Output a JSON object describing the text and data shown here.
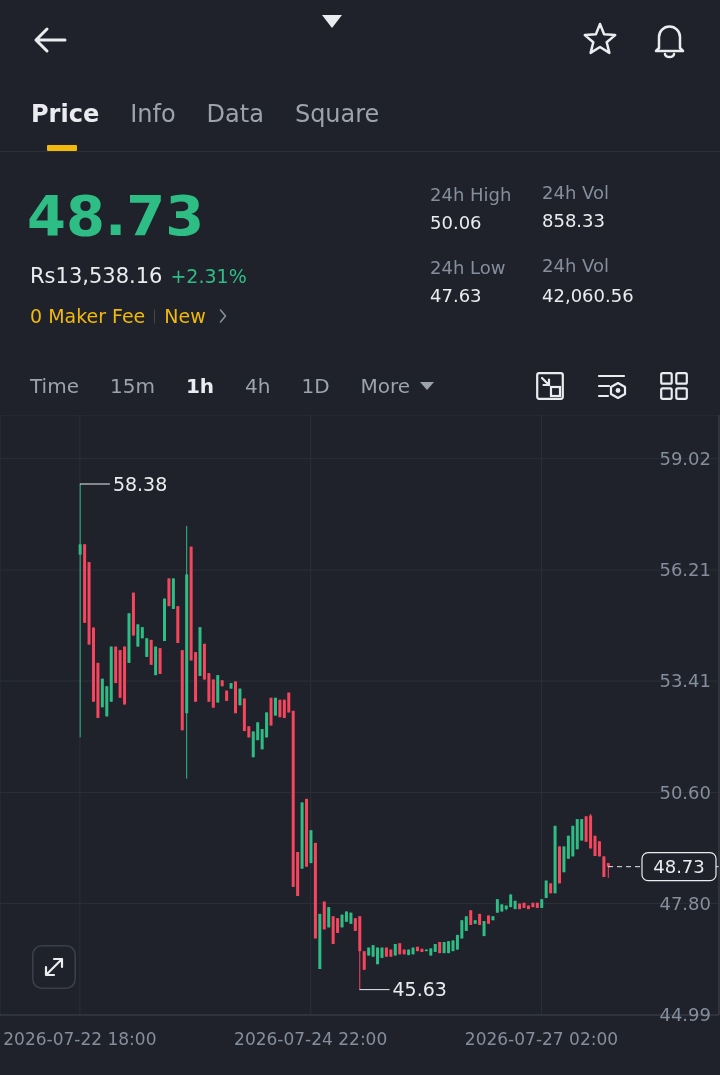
{
  "chart_data": {
    "type": "candlestick",
    "x": [
      "2026-07-22T18:00",
      "2026-07-22T19:00",
      "2026-07-22T20:00",
      "2026-07-22T21:00",
      "2026-07-22T22:00",
      "2026-07-22T23:00",
      "2026-07-23T00:00",
      "2026-07-23T01:00",
      "2026-07-23T02:00",
      "2026-07-23T03:00",
      "2026-07-23T04:00",
      "2026-07-23T05:00",
      "2026-07-23T06:00",
      "2026-07-23T07:00",
      "2026-07-23T08:00",
      "2026-07-23T09:00",
      "2026-07-23T10:00",
      "2026-07-23T11:00",
      "2026-07-23T12:00",
      "2026-07-23T13:00",
      "2026-07-23T14:00",
      "2026-07-23T15:00",
      "2026-07-23T16:00",
      "2026-07-23T17:00",
      "2026-07-23T18:00",
      "2026-07-23T19:00",
      "2026-07-23T20:00",
      "2026-07-23T21:00",
      "2026-07-23T22:00",
      "2026-07-23T23:00",
      "2026-07-24T00:00",
      "2026-07-24T01:00",
      "2026-07-24T02:00",
      "2026-07-24T03:00",
      "2026-07-24T04:00",
      "2026-07-24T05:00",
      "2026-07-24T06:00",
      "2026-07-24T07:00",
      "2026-07-24T08:00",
      "2026-07-24T09:00",
      "2026-07-24T10:00",
      "2026-07-24T11:00",
      "2026-07-24T12:00",
      "2026-07-24T13:00",
      "2026-07-24T14:00",
      "2026-07-24T15:00",
      "2026-07-24T16:00",
      "2026-07-24T17:00",
      "2026-07-24T18:00",
      "2026-07-24T19:00",
      "2026-07-24T20:00",
      "2026-07-24T21:00",
      "2026-07-24T22:00",
      "2026-07-24T23:00",
      "2026-07-25T00:00",
      "2026-07-25T01:00",
      "2026-07-25T02:00",
      "2026-07-25T03:00",
      "2026-07-25T04:00",
      "2026-07-25T05:00",
      "2026-07-25T06:00",
      "2026-07-25T07:00",
      "2026-07-25T08:00",
      "2026-07-25T09:00",
      "2026-07-25T10:00",
      "2026-07-25T11:00",
      "2026-07-25T12:00",
      "2026-07-25T13:00",
      "2026-07-25T14:00",
      "2026-07-25T15:00",
      "2026-07-25T16:00",
      "2026-07-25T17:00",
      "2026-07-25T18:00",
      "2026-07-25T19:00",
      "2026-07-25T20:00",
      "2026-07-25T21:00",
      "2026-07-25T22:00",
      "2026-07-25T23:00",
      "2026-07-26T00:00",
      "2026-07-26T01:00",
      "2026-07-26T02:00",
      "2026-07-26T03:00",
      "2026-07-26T04:00",
      "2026-07-26T05:00",
      "2026-07-26T06:00",
      "2026-07-26T07:00",
      "2026-07-26T08:00",
      "2026-07-26T09:00",
      "2026-07-26T10:00",
      "2026-07-26T11:00",
      "2026-07-26T12:00",
      "2026-07-26T13:00",
      "2026-07-26T14:00",
      "2026-07-26T15:00",
      "2026-07-26T16:00",
      "2026-07-26T17:00",
      "2026-07-26T18:00",
      "2026-07-26T19:00",
      "2026-07-26T20:00",
      "2026-07-26T21:00",
      "2026-07-26T22:00",
      "2026-07-26T23:00",
      "2026-07-27T00:00",
      "2026-07-27T01:00",
      "2026-07-27T02:00",
      "2026-07-27T03:00",
      "2026-07-27T04:00",
      "2026-07-27T05:00",
      "2026-07-27T06:00",
      "2026-07-27T07:00",
      "2026-07-27T08:00",
      "2026-07-27T09:00",
      "2026-07-27T10:00",
      "2026-07-27T11:00",
      "2026-07-27T12:00",
      "2026-07-27T13:00",
      "2026-07-27T14:00",
      "2026-07-27T15:00",
      "2026-07-27T16:00",
      "2026-07-27T17:00"
    ],
    "ohlc": [
      [
        56.6,
        58.38,
        51.99,
        56.86
      ],
      [
        56.86,
        56.86,
        54.88,
        54.88
      ],
      [
        56.41,
        56.41,
        54.33,
        54.33
      ],
      [
        54.76,
        54.76,
        52.89,
        52.89
      ],
      [
        53.87,
        53.87,
        52.48,
        52.48
      ],
      [
        52.75,
        53.47,
        52.75,
        53.47
      ],
      [
        52.52,
        53.28,
        52.52,
        53.28
      ],
      [
        52.89,
        54.28,
        52.89,
        54.28
      ],
      [
        54.28,
        54.28,
        53.36,
        53.36
      ],
      [
        54.19,
        54.19,
        52.99,
        52.99
      ],
      [
        54.28,
        54.28,
        52.82,
        52.82
      ],
      [
        53.87,
        55.12,
        53.87,
        55.12
      ],
      [
        55.64,
        55.64,
        54.56,
        54.56
      ],
      [
        54.28,
        54.84,
        54.28,
        54.84
      ],
      [
        54.49,
        54.77,
        54.49,
        54.77
      ],
      [
        54.02,
        54.49,
        54.02,
        54.49
      ],
      [
        54.45,
        54.45,
        53.82,
        53.82
      ],
      [
        53.56,
        54.28,
        53.56,
        54.28
      ],
      [
        54.24,
        54.24,
        53.59,
        53.59
      ],
      [
        54.42,
        55.49,
        54.42,
        55.49
      ],
      [
        56.0,
        56.0,
        55.3,
        55.3
      ],
      [
        55.23,
        56.0,
        55.23,
        56.0
      ],
      [
        55.3,
        55.3,
        54.37,
        54.37
      ],
      [
        54.19,
        54.19,
        52.17,
        52.17
      ],
      [
        52.6,
        57.32,
        50.95,
        56.1
      ],
      [
        56.8,
        56.8,
        53.93,
        53.93
      ],
      [
        54.14,
        54.14,
        52.89,
        52.89
      ],
      [
        53.54,
        54.77,
        53.54,
        54.77
      ],
      [
        54.35,
        54.35,
        53.45,
        53.45
      ],
      [
        53.61,
        53.61,
        52.89,
        52.89
      ],
      [
        53.45,
        53.45,
        52.74,
        52.74
      ],
      [
        52.87,
        53.56,
        52.87,
        53.56
      ],
      [
        53.43,
        53.43,
        53.28,
        53.28
      ],
      [
        53.17,
        53.17,
        52.91,
        52.91
      ],
      [
        53.22,
        53.36,
        53.22,
        53.36
      ],
      [
        53.4,
        53.4,
        52.6,
        52.6
      ],
      [
        52.8,
        53.22,
        52.8,
        53.22
      ],
      [
        52.97,
        52.97,
        52.15,
        52.15
      ],
      [
        52.27,
        52.27,
        51.99,
        51.99
      ],
      [
        51.49,
        52.14,
        51.49,
        52.14
      ],
      [
        51.92,
        52.37,
        51.92,
        52.37
      ],
      [
        51.69,
        52.2,
        51.69,
        52.2
      ],
      [
        51.99,
        52.62,
        51.99,
        52.62
      ],
      [
        52.99,
        52.99,
        52.29,
        52.29
      ],
      [
        52.54,
        52.99,
        52.54,
        52.99
      ],
      [
        52.94,
        52.94,
        52.5,
        52.5
      ],
      [
        52.94,
        52.94,
        52.48,
        52.48
      ],
      [
        53.12,
        53.12,
        52.62,
        52.62
      ],
      [
        52.66,
        52.66,
        48.22,
        48.22
      ],
      [
        49.1,
        49.1,
        47.99,
        47.99
      ],
      [
        48.68,
        50.35,
        48.68,
        50.35
      ],
      [
        50.44,
        50.44,
        48.73,
        48.73
      ],
      [
        48.82,
        49.65,
        48.82,
        49.65
      ],
      [
        49.33,
        49.33,
        46.92,
        46.92
      ],
      [
        46.15,
        47.54,
        46.15,
        47.54
      ],
      [
        47.85,
        47.85,
        47.15,
        47.15
      ],
      [
        47.2,
        47.71,
        47.2,
        47.71
      ],
      [
        47.48,
        47.48,
        46.78,
        46.78
      ],
      [
        47.43,
        47.43,
        47.06,
        47.06
      ],
      [
        47.2,
        47.52,
        47.2,
        47.52
      ],
      [
        47.34,
        47.6,
        47.34,
        47.6
      ],
      [
        47.29,
        47.57,
        47.29,
        47.57
      ],
      [
        47.43,
        47.43,
        47.11,
        47.11
      ],
      [
        47.48,
        47.48,
        45.63,
        46.6
      ],
      [
        46.6,
        46.6,
        46.13,
        46.13
      ],
      [
        46.49,
        46.69,
        46.49,
        46.69
      ],
      [
        46.46,
        46.75,
        46.46,
        46.75
      ],
      [
        46.27,
        46.69,
        46.27,
        46.69
      ],
      [
        46.43,
        46.69,
        46.43,
        46.69
      ],
      [
        46.69,
        46.69,
        46.46,
        46.46
      ],
      [
        46.64,
        46.64,
        46.46,
        46.46
      ],
      [
        46.49,
        46.78,
        46.49,
        46.78
      ],
      [
        46.8,
        46.8,
        46.52,
        46.52
      ],
      [
        46.64,
        46.64,
        46.52,
        46.52
      ],
      [
        46.5,
        46.64,
        46.5,
        46.64
      ],
      [
        46.52,
        46.69,
        46.52,
        46.69
      ],
      [
        46.71,
        46.71,
        46.6,
        46.6
      ],
      [
        46.66,
        46.66,
        46.58,
        46.58
      ],
      [
        46.6,
        46.64,
        46.6,
        46.64
      ],
      [
        46.49,
        46.67,
        46.49,
        46.67
      ],
      [
        46.58,
        46.78,
        46.58,
        46.78
      ],
      [
        46.83,
        46.83,
        46.55,
        46.55
      ],
      [
        46.55,
        46.83,
        46.55,
        46.83
      ],
      [
        46.55,
        46.85,
        46.55,
        46.85
      ],
      [
        46.6,
        46.87,
        46.6,
        46.87
      ],
      [
        46.64,
        47.01,
        46.64,
        47.01
      ],
      [
        46.92,
        47.38,
        46.92,
        47.38
      ],
      [
        47.11,
        47.48,
        47.11,
        47.48
      ],
      [
        47.63,
        47.63,
        47.26,
        47.26
      ],
      [
        47.29,
        47.38,
        47.29,
        47.38
      ],
      [
        47.54,
        47.54,
        47.26,
        47.26
      ],
      [
        46.98,
        47.36,
        46.98,
        47.36
      ],
      [
        47.5,
        47.5,
        47.29,
        47.29
      ],
      [
        47.38,
        47.48,
        47.38,
        47.48
      ],
      [
        47.57,
        47.91,
        47.57,
        47.91
      ],
      [
        47.6,
        47.78,
        47.6,
        47.78
      ],
      [
        47.66,
        47.75,
        47.63,
        47.75
      ],
      [
        47.71,
        48.03,
        47.71,
        48.03
      ],
      [
        47.66,
        47.87,
        47.66,
        47.87
      ],
      [
        47.8,
        47.8,
        47.66,
        47.66
      ],
      [
        47.82,
        47.82,
        47.69,
        47.69
      ],
      [
        47.75,
        47.75,
        47.66,
        47.66
      ],
      [
        47.82,
        47.82,
        47.71,
        47.71
      ],
      [
        47.82,
        47.82,
        47.69,
        47.69
      ],
      [
        47.69,
        47.91,
        47.69,
        47.91
      ],
      [
        47.94,
        48.38,
        47.94,
        48.38
      ],
      [
        48.31,
        48.31,
        48.06,
        48.06
      ],
      [
        48.06,
        49.76,
        48.06,
        49.76
      ],
      [
        49.24,
        49.24,
        48.31,
        48.31
      ],
      [
        48.59,
        49.24,
        48.59,
        49.24
      ],
      [
        48.93,
        49.51,
        48.93,
        49.51
      ],
      [
        48.99,
        49.76,
        48.99,
        49.76
      ],
      [
        49.17,
        49.93,
        49.17,
        49.93
      ],
      [
        49.39,
        49.93,
        49.39,
        49.93
      ],
      [
        50.0,
        50.0,
        49.36,
        49.36
      ],
      [
        50.02,
        50.06,
        49.19,
        49.19
      ],
      [
        49.51,
        49.51,
        49.0,
        49.0
      ],
      [
        49.37,
        49.37,
        48.99,
        48.99
      ],
      [
        48.99,
        48.99,
        48.47,
        48.47
      ],
      [
        48.82,
        48.82,
        48.45,
        48.73
      ]
    ],
    "colors": [
      "#2ebd85",
      "#f6465d",
      "#f6465d",
      "#f6465d",
      "#f6465d",
      "#2ebd85",
      "#2ebd85",
      "#2ebd85",
      "#f6465d",
      "#f6465d",
      "#f6465d",
      "#2ebd85",
      "#f6465d",
      "#2ebd85",
      "#2ebd85",
      "#2ebd85",
      "#f6465d",
      "#2ebd85",
      "#f6465d",
      "#2ebd85",
      "#f6465d",
      "#2ebd85",
      "#f6465d",
      "#f6465d",
      "#2ebd85",
      "#f6465d",
      "#f6465d",
      "#2ebd85",
      "#f6465d",
      "#f6465d",
      "#f6465d",
      "#2ebd85",
      "#f6465d",
      "#f6465d",
      "#2ebd85",
      "#f6465d",
      "#2ebd85",
      "#f6465d",
      "#f6465d",
      "#2ebd85",
      "#2ebd85",
      "#2ebd85",
      "#2ebd85",
      "#f6465d",
      "#2ebd85",
      "#f6465d",
      "#f6465d",
      "#f6465d",
      "#f6465d",
      "#f6465d",
      "#2ebd85",
      "#f6465d",
      "#2ebd85",
      "#f6465d",
      "#2ebd85",
      "#f6465d",
      "#2ebd85",
      "#f6465d",
      "#f6465d",
      "#2ebd85",
      "#2ebd85",
      "#2ebd85",
      "#f6465d",
      "#f6465d",
      "#f6465d",
      "#2ebd85",
      "#2ebd85",
      "#2ebd85",
      "#2ebd85",
      "#f6465d",
      "#f6465d",
      "#2ebd85",
      "#f6465d",
      "#f6465d",
      "#2ebd85",
      "#2ebd85",
      "#f6465d",
      "#f6465d",
      "#2ebd85",
      "#2ebd85",
      "#2ebd85",
      "#f6465d",
      "#2ebd85",
      "#2ebd85",
      "#2ebd85",
      "#2ebd85",
      "#2ebd85",
      "#2ebd85",
      "#f6465d",
      "#2ebd85",
      "#f6465d",
      "#2ebd85",
      "#f6465d",
      "#2ebd85",
      "#2ebd85",
      "#2ebd85",
      "#2ebd85",
      "#2ebd85",
      "#2ebd85",
      "#f6465d",
      "#f6465d",
      "#f6465d",
      "#f6465d",
      "#f6465d",
      "#2ebd85",
      "#2ebd85",
      "#f6465d",
      "#2ebd85",
      "#f6465d",
      "#2ebd85",
      "#2ebd85",
      "#2ebd85",
      "#2ebd85",
      "#2ebd85",
      "#f6465d",
      "#f6465d",
      "#f6465d",
      "#f6465d",
      "#f6465d",
      "#f6465d"
    ],
    "xlim": [
      "2026-07-22T00:00",
      "2026-07-28T18:00"
    ],
    "xticks": [
      {
        "value": "2026-07-22T18:00",
        "label": "2026-07-22 18:00"
      },
      {
        "value": "2026-07-24T22:00",
        "label": "2026-07-24 22:00"
      },
      {
        "value": "2026-07-27T02:00",
        "label": "2026-07-27 02:00"
      }
    ],
    "ylim": [
      44.99,
      60.12
    ],
    "yticks": [
      44.99,
      {
        "value": 47.8,
        "label": "47.80"
      },
      {
        "value": 50.6,
        "label": "50.60"
      },
      53.41,
      56.21,
      59.02
    ],
    "grid": true,
    "ref_lines": [
      {
        "axis": "y",
        "value": 48.73,
        "label": "48.73",
        "color": "#eaecef",
        "line_style": "dashed"
      }
    ],
    "annotations": [
      "Price",
      "Info",
      "Data",
      "Square",
      "48.73",
      "Rs13,538.16",
      "+2.31%",
      "0 Maker Fee",
      "New",
      "24h High",
      "50.06",
      "24h Low",
      "47.63",
      "24h Vol",
      "858.33",
      "24h Vol",
      "42,060.56",
      "Time",
      "15m",
      "1h",
      "4h",
      "1D",
      "More",
      {
        "text": "58.38",
        "x": "2026-07-22T18:00",
        "y": 58.38
      },
      {
        "text": "45.63",
        "x": "2026-07-25T09:00",
        "y": 45.63
      }
    ]
  }
}
